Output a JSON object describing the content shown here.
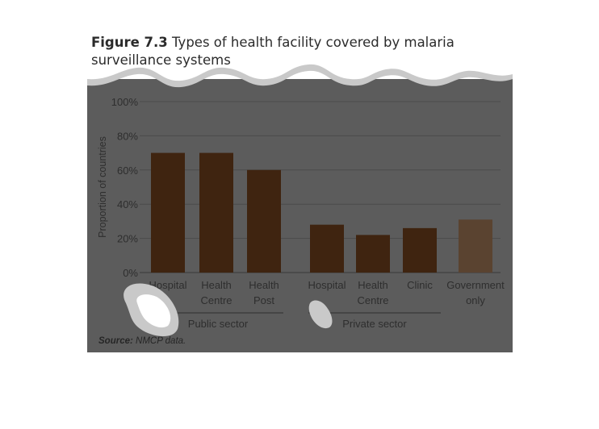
{
  "figure": {
    "number": "Figure 7.3",
    "title": "Types of health facility covered by malaria surveillance systems",
    "source_label": "Source:",
    "source_text": "NMCP data."
  },
  "colors": {
    "frame_bg": "#5c5c5c",
    "bar_dark": "#3f2410",
    "bar_light": "#5a4330",
    "gridline": "#4b4b4b",
    "blob": "#c9c9c9"
  },
  "chart_data": {
    "type": "bar",
    "title": "",
    "ylabel": "Proportion of countries",
    "ylim": [
      0,
      100
    ],
    "yticks": [
      "0%",
      "20%",
      "40%",
      "60%",
      "80%",
      "100%"
    ],
    "grid": true,
    "categories": [
      {
        "label": [
          "Hospital"
        ],
        "group": "Public sector",
        "value": 70
      },
      {
        "label": [
          "Health",
          "Centre"
        ],
        "group": "Public sector",
        "value": 70
      },
      {
        "label": [
          "Health",
          "Post"
        ],
        "group": "Public sector",
        "value": 60
      },
      {
        "label": [
          "Hospital"
        ],
        "group": "Private sector",
        "value": 28
      },
      {
        "label": [
          "Health",
          "Centre"
        ],
        "group": "Private sector",
        "value": 22
      },
      {
        "label": [
          "Clinic"
        ],
        "group": "Private sector",
        "value": 26
      },
      {
        "label": [
          "Government",
          "only"
        ],
        "group": "",
        "value": 31
      }
    ],
    "groups": [
      "Public sector",
      "Private sector"
    ]
  }
}
